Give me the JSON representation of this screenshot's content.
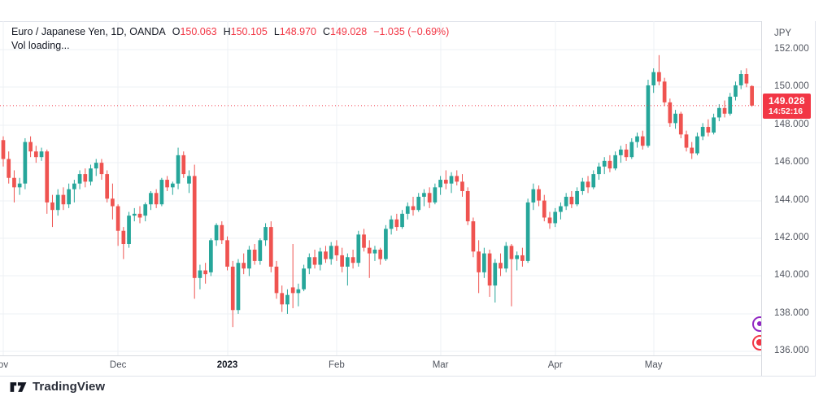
{
  "header": {
    "symbol_title": "Euro / Japanese Yen, 1D, OANDA",
    "ohlc": [
      {
        "k": "O",
        "v": "150.063"
      },
      {
        "k": "H",
        "v": "150.105"
      },
      {
        "k": "L",
        "v": "148.970"
      },
      {
        "k": "C",
        "v": "149.028"
      }
    ],
    "change": "−1.035 (−0.69%)",
    "indicator_line": "Vol loading..."
  },
  "price_axis": {
    "currency_label": "JPY",
    "last_price_label": "149.028",
    "countdown": "14:52:16"
  },
  "footer": {
    "brand": "TradingView"
  },
  "colors": {
    "up": "#26a69a",
    "down": "#ef5350",
    "accent_red": "#f23645",
    "grid": "#eef0f4",
    "axis_text": "#50545e",
    "header_text": "#131722",
    "badge_purple": "#9126c2"
  },
  "chart_data": {
    "type": "candlestick",
    "symbol": "EUR/JPY",
    "timeframe": "1D",
    "exchange": "OANDA",
    "current": {
      "open": 150.063,
      "high": 150.105,
      "low": 148.97,
      "close": 149.028,
      "change": -1.035,
      "change_pct": -0.69
    },
    "last_price": 149.028,
    "ylim": [
      135.8,
      153.5
    ],
    "grid": true,
    "y_ticks": [
      {
        "v": 152,
        "label": "152.000"
      },
      {
        "v": 150,
        "label": "150.000"
      },
      {
        "v": 148,
        "label": "148.000"
      },
      {
        "v": 146,
        "label": "146.000"
      },
      {
        "v": 144,
        "label": "144.000"
      },
      {
        "v": 142,
        "label": "142.000"
      },
      {
        "v": 140,
        "label": "140.000"
      },
      {
        "v": 138,
        "label": "138.000"
      },
      {
        "v": 136,
        "label": "136.000"
      }
    ],
    "x_ticks": [
      {
        "i": 0,
        "label": "ov"
      },
      {
        "i": 21,
        "label": "Dec"
      },
      {
        "i": 41,
        "label": "2023",
        "bold": true
      },
      {
        "i": 61,
        "label": "Feb"
      },
      {
        "i": 80,
        "label": "Mar"
      },
      {
        "i": 101,
        "label": "Apr"
      },
      {
        "i": 119,
        "label": "May"
      }
    ],
    "candles_format": [
      "open",
      "high",
      "low",
      "close"
    ],
    "candles": [
      [
        147.2,
        147.4,
        145.8,
        146.2
      ],
      [
        146.2,
        146.6,
        144.9,
        145.2
      ],
      [
        145.2,
        145.6,
        143.9,
        144.7
      ],
      [
        144.7,
        145.2,
        144.3,
        144.9
      ],
      [
        144.9,
        147.3,
        144.6,
        147.1
      ],
      [
        147.1,
        147.4,
        146.3,
        146.6
      ],
      [
        146.6,
        146.9,
        146.0,
        146.3
      ],
      [
        146.3,
        146.8,
        146.1,
        146.6
      ],
      [
        146.6,
        146.7,
        143.3,
        143.9
      ],
      [
        143.9,
        144.3,
        142.6,
        143.5
      ],
      [
        143.5,
        144.6,
        143.2,
        144.3
      ],
      [
        144.3,
        144.7,
        143.5,
        143.8
      ],
      [
        143.8,
        144.9,
        143.6,
        144.6
      ],
      [
        144.6,
        145.1,
        143.9,
        144.9
      ],
      [
        144.9,
        145.6,
        144.6,
        145.4
      ],
      [
        145.4,
        145.7,
        144.7,
        145.0
      ],
      [
        145.0,
        145.9,
        144.8,
        145.7
      ],
      [
        145.7,
        146.2,
        145.3,
        146.0
      ],
      [
        146.0,
        146.2,
        145.1,
        145.4
      ],
      [
        145.4,
        145.6,
        143.9,
        144.1
      ],
      [
        144.1,
        144.9,
        143.0,
        143.7
      ],
      [
        143.7,
        143.8,
        141.6,
        142.4
      ],
      [
        142.4,
        142.6,
        140.9,
        141.7
      ],
      [
        141.7,
        143.4,
        141.5,
        143.2
      ],
      [
        143.2,
        143.6,
        142.9,
        143.3
      ],
      [
        143.3,
        143.7,
        142.8,
        143.1
      ],
      [
        143.2,
        143.9,
        142.9,
        143.8
      ],
      [
        143.8,
        144.5,
        143.5,
        144.4
      ],
      [
        144.4,
        144.6,
        143.6,
        143.8
      ],
      [
        143.8,
        145.2,
        143.7,
        145.1
      ],
      [
        145.1,
        145.3,
        144.5,
        144.7
      ],
      [
        144.7,
        145.0,
        144.3,
        144.9
      ],
      [
        144.9,
        146.8,
        144.6,
        146.4
      ],
      [
        146.4,
        146.6,
        145.2,
        145.4
      ],
      [
        144.9,
        145.6,
        144.4,
        145.3
      ],
      [
        145.3,
        145.9,
        138.8,
        139.9
      ],
      [
        139.9,
        140.6,
        139.3,
        140.3
      ],
      [
        140.3,
        140.7,
        139.6,
        140.1
      ],
      [
        140.2,
        142.0,
        140.0,
        141.9
      ],
      [
        141.9,
        142.8,
        141.6,
        142.7
      ],
      [
        142.7,
        142.9,
        141.7,
        141.9
      ],
      [
        141.9,
        142.1,
        140.3,
        140.5
      ],
      [
        140.5,
        140.8,
        137.3,
        138.2
      ],
      [
        138.2,
        140.9,
        138.0,
        140.7
      ],
      [
        140.7,
        141.2,
        140.1,
        140.4
      ],
      [
        140.4,
        141.6,
        140.0,
        141.4
      ],
      [
        141.4,
        141.7,
        140.6,
        140.8
      ],
      [
        140.8,
        142.0,
        140.6,
        141.9
      ],
      [
        141.9,
        142.8,
        141.6,
        142.6
      ],
      [
        142.6,
        142.9,
        140.2,
        140.5
      ],
      [
        140.5,
        140.8,
        138.8,
        139.1
      ],
      [
        139.1,
        139.5,
        138.1,
        138.5
      ],
      [
        138.5,
        139.3,
        138.0,
        139.0
      ],
      [
        139.4,
        141.7,
        138.3,
        139.1
      ],
      [
        139.1,
        139.6,
        138.4,
        139.3
      ],
      [
        139.3,
        140.6,
        139.2,
        140.4
      ],
      [
        140.4,
        141.2,
        140.1,
        141.0
      ],
      [
        141.0,
        141.4,
        140.4,
        140.6
      ],
      [
        140.6,
        141.5,
        140.3,
        141.3
      ],
      [
        141.3,
        141.6,
        140.7,
        140.9
      ],
      [
        140.9,
        141.8,
        140.6,
        141.6
      ],
      [
        141.6,
        141.9,
        140.8,
        141.1
      ],
      [
        141.1,
        141.5,
        140.2,
        140.5
      ],
      [
        140.5,
        141.2,
        139.5,
        141.0
      ],
      [
        141.0,
        141.4,
        140.4,
        140.7
      ],
      [
        140.7,
        142.4,
        140.5,
        142.2
      ],
      [
        142.2,
        142.5,
        141.3,
        141.5
      ],
      [
        141.5,
        141.9,
        139.9,
        141.2
      ],
      [
        141.2,
        141.6,
        140.8,
        141.4
      ],
      [
        141.4,
        141.5,
        140.6,
        140.9
      ],
      [
        140.9,
        142.7,
        140.8,
        142.5
      ],
      [
        142.5,
        143.2,
        142.2,
        143.0
      ],
      [
        143.0,
        143.3,
        142.4,
        142.6
      ],
      [
        142.6,
        143.5,
        142.5,
        143.3
      ],
      [
        143.3,
        143.9,
        143.0,
        143.7
      ],
      [
        143.7,
        144.2,
        143.2,
        143.5
      ],
      [
        143.5,
        144.4,
        143.4,
        144.2
      ],
      [
        144.2,
        144.6,
        143.7,
        144.4
      ],
      [
        144.4,
        144.7,
        143.6,
        143.9
      ],
      [
        143.9,
        144.9,
        143.8,
        144.7
      ],
      [
        144.7,
        145.3,
        144.3,
        145.1
      ],
      [
        145.1,
        145.6,
        144.6,
        144.9
      ],
      [
        144.9,
        145.5,
        144.4,
        145.3
      ],
      [
        145.3,
        145.6,
        144.8,
        145.0
      ],
      [
        145.0,
        145.4,
        144.2,
        144.5
      ],
      [
        144.5,
        144.7,
        142.7,
        142.9
      ],
      [
        142.9,
        143.1,
        141.0,
        141.3
      ],
      [
        141.3,
        141.9,
        139.1,
        140.2
      ],
      [
        140.2,
        141.5,
        139.9,
        141.2
      ],
      [
        141.2,
        141.4,
        138.9,
        139.5
      ],
      [
        139.5,
        140.9,
        138.6,
        140.7
      ],
      [
        140.7,
        141.2,
        140.0,
        140.4
      ],
      [
        140.4,
        141.8,
        140.2,
        141.6
      ],
      [
        141.6,
        141.7,
        138.4,
        140.9
      ],
      [
        140.9,
        141.3,
        140.3,
        141.1
      ],
      [
        141.1,
        141.5,
        140.5,
        140.8
      ],
      [
        140.8,
        144.1,
        140.7,
        143.9
      ],
      [
        143.9,
        144.9,
        143.5,
        144.6
      ],
      [
        144.6,
        144.8,
        143.7,
        144.0
      ],
      [
        144.0,
        144.3,
        142.9,
        143.1
      ],
      [
        143.1,
        143.4,
        142.5,
        142.8
      ],
      [
        142.8,
        143.6,
        142.6,
        143.4
      ],
      [
        143.4,
        143.9,
        143.0,
        143.7
      ],
      [
        143.7,
        144.4,
        143.5,
        144.2
      ],
      [
        144.2,
        144.5,
        143.6,
        143.8
      ],
      [
        143.8,
        144.7,
        143.7,
        144.5
      ],
      [
        144.5,
        145.2,
        144.3,
        145.0
      ],
      [
        145.0,
        145.3,
        144.4,
        144.7
      ],
      [
        144.7,
        145.6,
        144.6,
        145.4
      ],
      [
        145.4,
        146.0,
        145.1,
        145.8
      ],
      [
        145.8,
        146.3,
        145.4,
        146.1
      ],
      [
        146.1,
        146.4,
        145.5,
        145.7
      ],
      [
        145.7,
        146.6,
        145.6,
        146.4
      ],
      [
        146.4,
        146.9,
        146.0,
        146.7
      ],
      [
        146.7,
        147.0,
        146.1,
        146.3
      ],
      [
        146.3,
        147.3,
        146.2,
        147.1
      ],
      [
        147.1,
        147.6,
        146.8,
        147.4
      ],
      [
        147.4,
        147.7,
        146.7,
        146.9
      ],
      [
        146.9,
        150.4,
        146.8,
        150.1
      ],
      [
        150.1,
        151.0,
        149.7,
        150.8
      ],
      [
        150.8,
        151.7,
        150.1,
        150.3
      ],
      [
        150.3,
        150.5,
        149.0,
        149.2
      ],
      [
        149.2,
        149.4,
        147.9,
        148.1
      ],
      [
        148.1,
        148.8,
        147.8,
        148.6
      ],
      [
        148.6,
        148.7,
        147.3,
        147.5
      ],
      [
        147.5,
        147.7,
        146.6,
        146.8
      ],
      [
        146.8,
        147.1,
        146.2,
        146.5
      ],
      [
        146.5,
        147.6,
        146.4,
        147.4
      ],
      [
        147.4,
        148.1,
        147.2,
        147.9
      ],
      [
        147.9,
        148.3,
        147.4,
        147.6
      ],
      [
        147.6,
        148.6,
        147.5,
        148.4
      ],
      [
        148.4,
        149.1,
        148.2,
        148.9
      ],
      [
        148.9,
        149.3,
        148.4,
        148.6
      ],
      [
        148.6,
        149.7,
        148.5,
        149.5
      ],
      [
        149.5,
        150.3,
        149.3,
        150.1
      ],
      [
        150.1,
        150.9,
        149.9,
        150.7
      ],
      [
        150.7,
        151.0,
        150.0,
        150.2
      ],
      [
        150.063,
        150.105,
        148.97,
        149.028
      ]
    ]
  }
}
